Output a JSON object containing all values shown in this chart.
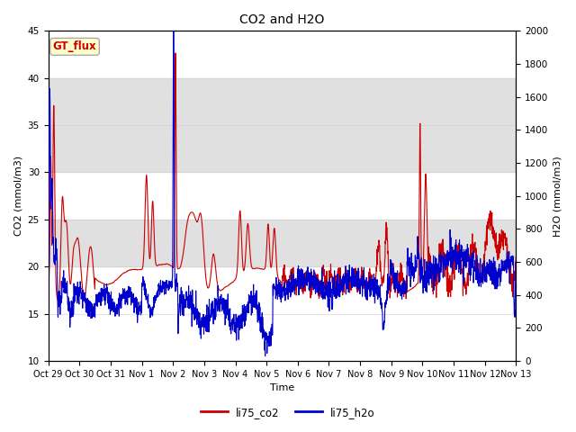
{
  "title": "CO2 and H2O",
  "xlabel": "Time",
  "ylabel_left": "CO2 (mmol/m3)",
  "ylabel_right": "H2O (mmol/m3)",
  "ylim_left": [
    10,
    45
  ],
  "ylim_right": [
    0,
    2000
  ],
  "yticks_left": [
    10,
    15,
    20,
    25,
    30,
    35,
    40,
    45
  ],
  "yticks_right": [
    0,
    200,
    400,
    600,
    800,
    1000,
    1200,
    1400,
    1600,
    1800,
    2000
  ],
  "color_co2": "#cc0000",
  "color_h2o": "#0000cc",
  "legend_label_co2": "li75_co2",
  "legend_label_h2o": "li75_h2o",
  "annotation_text": "GT_flux",
  "annotation_color": "#cc0000",
  "annotation_bg": "#ffffcc",
  "annotation_border": "#aaaaaa",
  "bg_band_color": "#e0e0e0",
  "tick_dates": [
    "Oct 29",
    "Oct 30",
    "Oct 31",
    "Nov 1",
    "Nov 2",
    "Nov 3",
    "Nov 4",
    "Nov 5",
    "Nov 6",
    "Nov 7",
    "Nov 8",
    "Nov 9",
    "Nov 10",
    "Nov 11",
    "Nov 12",
    "Nov 13"
  ],
  "n_points": 2000,
  "seed": 42
}
